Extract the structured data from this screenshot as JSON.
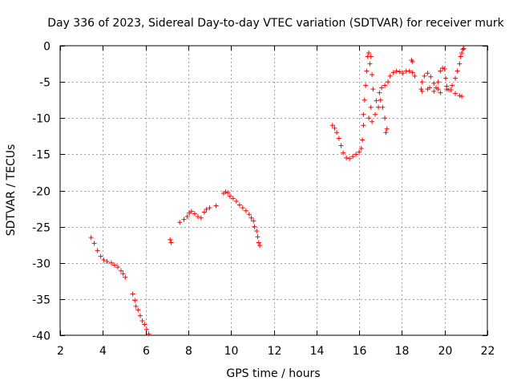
{
  "chart_data": {
    "type": "scatter",
    "title": "Day 336 of 2023, Sidereal Day-to-day VTEC variation (SDTVAR) for receiver murk",
    "xlabel": "GPS time / hours",
    "ylabel": "SDTVAR / TECUs",
    "xlim": [
      2,
      22
    ],
    "ylim": [
      -40,
      0
    ],
    "xticks": [
      2,
      4,
      6,
      8,
      10,
      12,
      14,
      16,
      18,
      20,
      22
    ],
    "yticks": [
      0,
      -5,
      -10,
      -15,
      -20,
      -25,
      -30,
      -35,
      -40
    ],
    "grid": true,
    "marker": "+",
    "color": "#ff0000",
    "series": [
      {
        "name": "segment-1",
        "points": [
          [
            3.45,
            -26.5
          ],
          [
            3.6,
            -27.3
          ],
          [
            3.75,
            -28.3
          ],
          [
            3.9,
            -29.1
          ],
          [
            4.05,
            -29.6
          ],
          [
            4.2,
            -29.8
          ],
          [
            4.4,
            -30.0
          ],
          [
            4.55,
            -30.3
          ],
          [
            4.7,
            -30.6
          ],
          [
            4.85,
            -31.1
          ],
          [
            4.95,
            -31.5
          ],
          [
            5.05,
            -32.0
          ]
        ]
      },
      {
        "name": "segment-2",
        "points": [
          [
            5.4,
            -34.3
          ],
          [
            5.5,
            -35.2
          ],
          [
            5.55,
            -36.0
          ],
          [
            5.65,
            -36.5
          ],
          [
            5.75,
            -37.3
          ],
          [
            5.85,
            -38.0
          ],
          [
            5.95,
            -38.5
          ],
          [
            6.05,
            -39.2
          ],
          [
            6.15,
            -39.8
          ]
        ]
      },
      {
        "name": "segment-3",
        "points": [
          [
            7.15,
            -26.8
          ],
          [
            7.2,
            -27.2
          ]
        ]
      },
      {
        "name": "segment-4",
        "points": [
          [
            7.6,
            -24.4
          ],
          [
            7.8,
            -24.0
          ],
          [
            7.95,
            -23.6
          ],
          [
            8.05,
            -23.1
          ],
          [
            8.15,
            -22.9
          ],
          [
            8.3,
            -23.2
          ],
          [
            8.45,
            -23.6
          ],
          [
            8.6,
            -23.8
          ],
          [
            8.75,
            -23.0
          ],
          [
            8.85,
            -22.6
          ],
          [
            9.0,
            -22.4
          ],
          [
            9.3,
            -22.1
          ]
        ]
      },
      {
        "name": "segment-5",
        "points": [
          [
            9.65,
            -20.4
          ],
          [
            9.75,
            -20.2
          ],
          [
            9.85,
            -20.3
          ],
          [
            9.95,
            -20.8
          ],
          [
            10.1,
            -21.1
          ],
          [
            10.25,
            -21.5
          ],
          [
            10.4,
            -22.0
          ],
          [
            10.55,
            -22.4
          ],
          [
            10.7,
            -22.8
          ],
          [
            10.85,
            -23.3
          ],
          [
            10.95,
            -23.8
          ],
          [
            11.05,
            -24.2
          ],
          [
            11.1,
            -25.0
          ],
          [
            11.2,
            -25.6
          ],
          [
            11.25,
            -26.4
          ],
          [
            11.3,
            -27.2
          ],
          [
            11.35,
            -27.6
          ]
        ]
      },
      {
        "name": "segment-6",
        "points": [
          [
            14.75,
            -11.0
          ],
          [
            14.85,
            -11.4
          ],
          [
            14.95,
            -12.0
          ],
          [
            15.05,
            -12.8
          ],
          [
            15.15,
            -13.8
          ],
          [
            15.25,
            -14.8
          ],
          [
            15.4,
            -15.5
          ],
          [
            15.55,
            -15.6
          ],
          [
            15.7,
            -15.3
          ],
          [
            15.85,
            -15.0
          ],
          [
            16.0,
            -14.7
          ],
          [
            16.1,
            -14.2
          ],
          [
            16.15,
            -13.0
          ],
          [
            16.2,
            -11.0
          ]
        ]
      },
      {
        "name": "segment-7",
        "points": [
          [
            16.2,
            -9.5
          ],
          [
            16.25,
            -7.5
          ],
          [
            16.3,
            -5.5
          ],
          [
            16.35,
            -3.5
          ],
          [
            16.4,
            -1.5
          ],
          [
            16.45,
            -1.0
          ],
          [
            16.5,
            -2.5
          ],
          [
            16.55,
            -1.5
          ],
          [
            16.6,
            -4.0
          ],
          [
            16.65,
            -6.0
          ],
          [
            16.55,
            -8.5
          ],
          [
            16.45,
            -10.0
          ],
          [
            16.6,
            -10.5
          ],
          [
            16.75,
            -9.5
          ],
          [
            16.9,
            -8.5
          ],
          [
            17.0,
            -7.5
          ],
          [
            17.1,
            -8.5
          ],
          [
            17.2,
            -10.0
          ],
          [
            17.3,
            -11.5
          ],
          [
            17.25,
            -12.0
          ]
        ]
      },
      {
        "name": "segment-8",
        "points": [
          [
            16.8,
            -7.6
          ],
          [
            16.95,
            -6.5
          ],
          [
            17.05,
            -5.8
          ],
          [
            17.2,
            -5.5
          ],
          [
            17.35,
            -5.0
          ],
          [
            17.45,
            -4.2
          ],
          [
            17.6,
            -3.7
          ],
          [
            17.75,
            -3.5
          ],
          [
            17.9,
            -3.6
          ],
          [
            18.05,
            -3.8
          ],
          [
            18.2,
            -3.5
          ],
          [
            18.35,
            -3.5
          ],
          [
            18.5,
            -3.7
          ],
          [
            18.6,
            -4.2
          ],
          [
            18.45,
            -2.0
          ],
          [
            18.5,
            -2.2
          ]
        ]
      },
      {
        "name": "segment-9",
        "points": [
          [
            18.9,
            -6.0
          ],
          [
            18.95,
            -5.0
          ],
          [
            19.05,
            -4.2
          ],
          [
            19.2,
            -3.8
          ],
          [
            19.35,
            -4.3
          ],
          [
            19.5,
            -5.2
          ],
          [
            19.6,
            -5.8
          ],
          [
            19.7,
            -5.0
          ],
          [
            19.8,
            -3.5
          ],
          [
            19.9,
            -3.1
          ],
          [
            20.0,
            -3.2
          ],
          [
            20.05,
            -4.5
          ],
          [
            20.1,
            -5.6
          ],
          [
            19.7,
            -6.0
          ],
          [
            19.3,
            -5.8
          ],
          [
            18.95,
            -6.3
          ],
          [
            19.2,
            -6.0
          ],
          [
            19.5,
            -6.3
          ],
          [
            19.8,
            -6.5
          ],
          [
            20.1,
            -6.0
          ],
          [
            20.3,
            -6.1
          ],
          [
            20.5,
            -6.6
          ],
          [
            20.7,
            -6.9
          ],
          [
            20.8,
            -7.0
          ]
        ]
      },
      {
        "name": "segment-10",
        "points": [
          [
            20.2,
            -6.1
          ],
          [
            20.35,
            -5.5
          ],
          [
            20.5,
            -4.5
          ],
          [
            20.6,
            -3.5
          ],
          [
            20.7,
            -2.5
          ],
          [
            20.75,
            -1.5
          ],
          [
            20.8,
            -1.0
          ],
          [
            20.85,
            -0.5
          ],
          [
            20.9,
            -0.4
          ]
        ]
      }
    ]
  }
}
